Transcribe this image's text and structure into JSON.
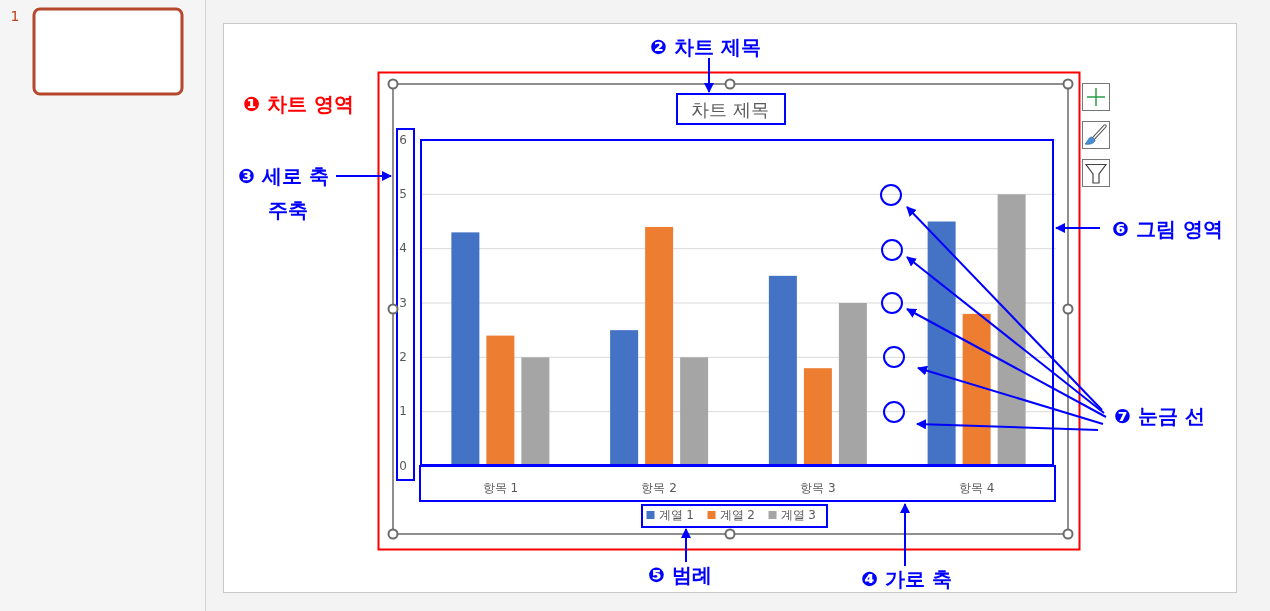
{
  "chart_data": {
    "type": "bar",
    "title": "차트 제목",
    "categories": [
      "항목 1",
      "항목 2",
      "항목 3",
      "항목 4"
    ],
    "series": [
      {
        "name": "계열 1",
        "color": "#4472c4",
        "values": [
          4.3,
          2.5,
          3.5,
          4.5
        ]
      },
      {
        "name": "계열 2",
        "color": "#ed7d31",
        "values": [
          2.4,
          4.4,
          1.8,
          2.8
        ]
      },
      {
        "name": "계열 3",
        "color": "#a5a5a5",
        "values": [
          2,
          2,
          3,
          5
        ]
      }
    ],
    "ylim": [
      0,
      6
    ],
    "yticks": [
      0,
      1,
      2,
      3,
      4,
      5,
      6
    ],
    "grid": "y",
    "legend": "bottom",
    "annotations": [
      "1",
      "❶ 차트 영역",
      "❷ 차트 제목",
      "❸ 세로 축\n주축",
      "❹ 가로 축",
      "❺ 범례",
      "❻ 그림 영역",
      "❼ 눈금 선"
    ]
  }
}
